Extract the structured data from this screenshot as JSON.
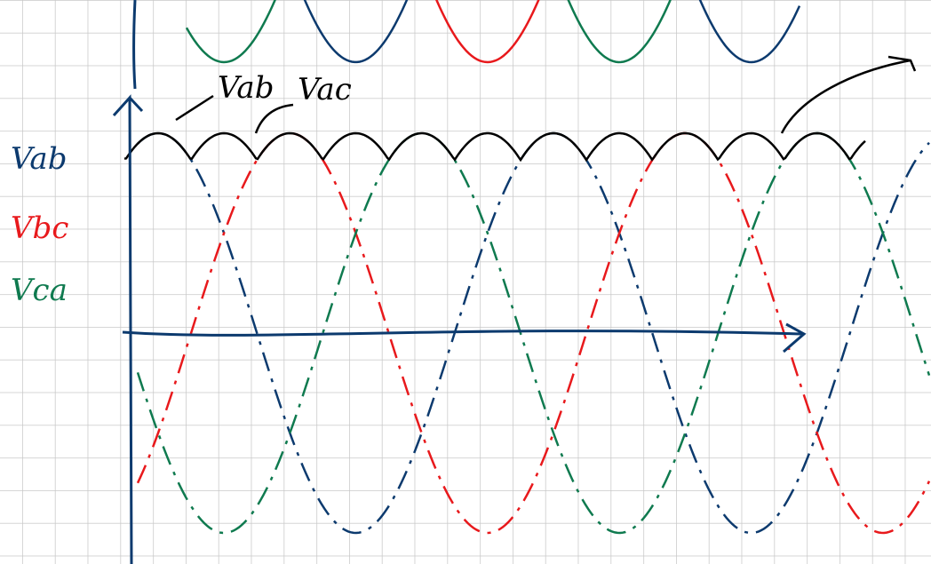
{
  "annotations": [
    "Vab",
    "Vac"
  ],
  "legend": [
    "Vab",
    "Vbc",
    "Vca"
  ]
}
